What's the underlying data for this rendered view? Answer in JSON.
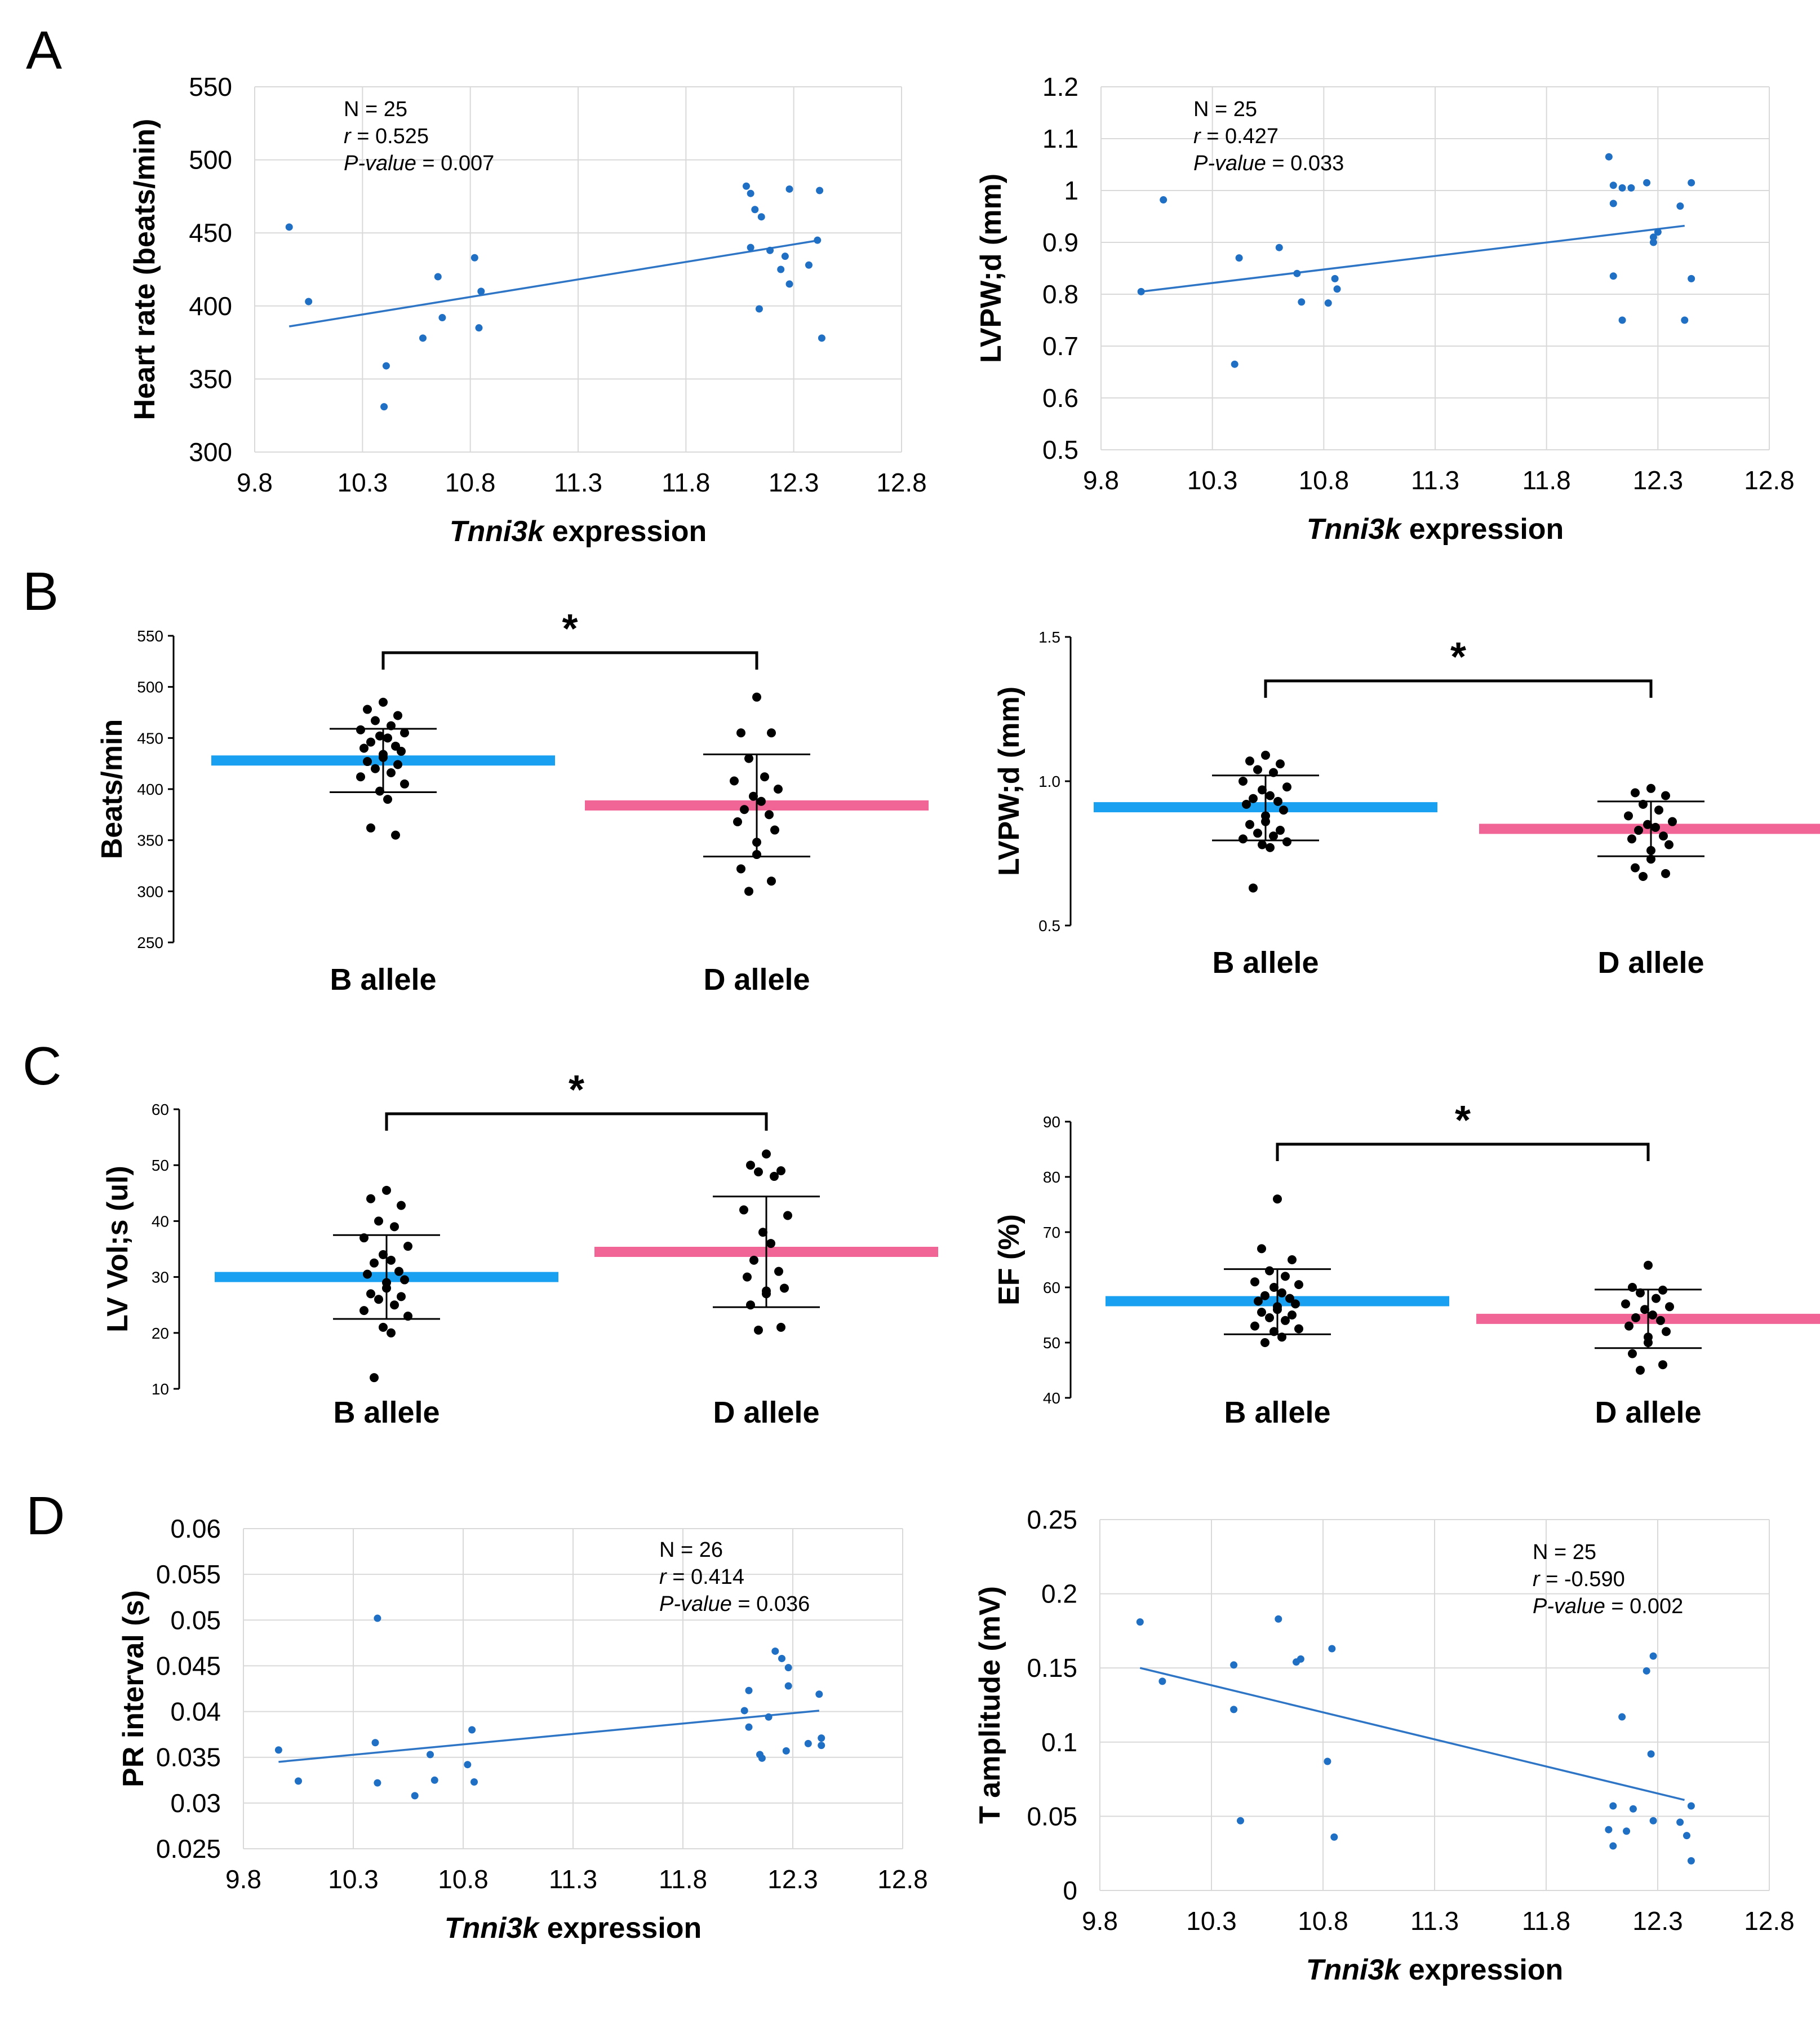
{
  "panel_labels": [
    "A",
    "B",
    "C",
    "D"
  ],
  "colors": {
    "scatter_point": "#1f6fc5",
    "trend_line": "#2e75c6",
    "grid": "#d9d9d9",
    "b_allele_mean": "#1aa0f0",
    "d_allele_mean": "#f06496",
    "dot": "#000000"
  },
  "chart_data": [
    {
      "id": "A-left",
      "panel": "A",
      "type": "scatter",
      "xlabel_italic": "Tnni3k",
      "xlabel_rest": " expression",
      "ylabel": "Heart rate (beats/min)",
      "xlim": [
        9.8,
        12.8
      ],
      "ylim": [
        300,
        550
      ],
      "xticks": [
        "9.8",
        "10.3",
        "10.8",
        "11.3",
        "11.8",
        "12.3",
        "12.8"
      ],
      "yticks": [
        "300",
        "350",
        "400",
        "450",
        "500",
        "550"
      ],
      "annotation": {
        "n": "N = 25",
        "r_label": "r",
        "r_value": " = 0.525",
        "p_label": "P-value",
        "p_value": " = 0.007"
      },
      "trendline": {
        "x": [
          9.96,
          12.42
        ],
        "y": [
          386,
          445
        ]
      },
      "points": [
        [
          9.96,
          454
        ],
        [
          10.05,
          403
        ],
        [
          10.41,
          359
        ],
        [
          10.4,
          331
        ],
        [
          10.58,
          378
        ],
        [
          10.65,
          420
        ],
        [
          10.67,
          392
        ],
        [
          10.82,
          433
        ],
        [
          10.84,
          385
        ],
        [
          10.85,
          410
        ],
        [
          12.08,
          482
        ],
        [
          12.1,
          477
        ],
        [
          12.12,
          466
        ],
        [
          12.15,
          461
        ],
        [
          12.1,
          440
        ],
        [
          12.19,
          438
        ],
        [
          12.14,
          398
        ],
        [
          12.26,
          434
        ],
        [
          12.24,
          425
        ],
        [
          12.28,
          480
        ],
        [
          12.28,
          415
        ],
        [
          12.37,
          428
        ],
        [
          12.41,
          445
        ],
        [
          12.42,
          479
        ],
        [
          12.43,
          378
        ]
      ]
    },
    {
      "id": "A-right",
      "panel": "A",
      "type": "scatter",
      "xlabel_italic": "Tnni3k",
      "xlabel_rest": " expression",
      "ylabel": "LVPW;d (mm)",
      "xlim": [
        9.8,
        12.8
      ],
      "ylim": [
        0.5,
        1.2
      ],
      "xticks": [
        "9.8",
        "10.3",
        "10.8",
        "11.3",
        "11.8",
        "12.3",
        "12.8"
      ],
      "yticks": [
        "0.5",
        "0.6",
        "0.7",
        "0.8",
        "0.9",
        "1",
        "1.1",
        "1.2"
      ],
      "annotation": {
        "n": "N = 25",
        "r_label": "r",
        "r_value": " = 0.427",
        "p_label": "P-value",
        "p_value": " = 0.033"
      },
      "trendline": {
        "x": [
          9.98,
          12.42
        ],
        "y": [
          0.805,
          0.932
        ]
      },
      "points": [
        [
          9.98,
          0.805
        ],
        [
          10.08,
          0.982
        ],
        [
          10.4,
          0.665
        ],
        [
          10.42,
          0.87
        ],
        [
          10.6,
          0.89
        ],
        [
          10.68,
          0.84
        ],
        [
          10.7,
          0.785
        ],
        [
          10.82,
          0.783
        ],
        [
          10.85,
          0.83
        ],
        [
          10.86,
          0.81
        ],
        [
          12.08,
          1.065
        ],
        [
          12.1,
          1.01
        ],
        [
          12.1,
          0.975
        ],
        [
          12.14,
          1.005
        ],
        [
          12.18,
          1.005
        ],
        [
          12.1,
          0.835
        ],
        [
          12.14,
          0.75
        ],
        [
          12.25,
          1.015
        ],
        [
          12.28,
          0.9
        ],
        [
          12.3,
          0.92
        ],
        [
          12.28,
          0.91
        ],
        [
          12.4,
          0.97
        ],
        [
          12.45,
          1.015
        ],
        [
          12.45,
          0.83
        ],
        [
          12.42,
          0.75
        ]
      ]
    },
    {
      "id": "B-left",
      "panel": "B",
      "type": "scatter",
      "ylabel": "Beats/min",
      "ylim": [
        250,
        550
      ],
      "yticks": [
        "250",
        "300",
        "350",
        "400",
        "450",
        "500",
        "550"
      ],
      "categories": [
        "B allele",
        "D allele"
      ],
      "series": [
        {
          "name": "B allele",
          "mean": 428,
          "sd_low": 397,
          "sd_high": 459,
          "values": [
            485,
            478,
            472,
            467,
            462,
            458,
            455,
            452,
            450,
            446,
            442,
            440,
            437,
            434,
            431,
            427,
            424,
            420,
            416,
            412,
            405,
            398,
            390,
            362,
            355
          ]
        },
        {
          "name": "D allele",
          "mean": 384,
          "sd_low": 334,
          "sd_high": 434,
          "values": [
            490,
            455,
            455,
            430,
            412,
            408,
            400,
            393,
            388,
            380,
            375,
            368,
            360,
            348,
            336,
            322,
            310,
            300
          ]
        }
      ],
      "significance": "*"
    },
    {
      "id": "B-right",
      "panel": "B",
      "type": "scatter",
      "ylabel": "LVPW;d (mm)",
      "ylim": [
        0.5,
        1.5
      ],
      "yticks": [
        "0.5",
        "1.0",
        "1.5"
      ],
      "categories": [
        "B allele",
        "D allele"
      ],
      "series": [
        {
          "name": "B allele",
          "mean": 0.91,
          "sd_low": 0.795,
          "sd_high": 1.02,
          "values": [
            1.09,
            1.07,
            1.06,
            1.04,
            1.03,
            1.0,
            0.98,
            0.97,
            0.95,
            0.94,
            0.93,
            0.92,
            0.9,
            0.88,
            0.86,
            0.85,
            0.83,
            0.82,
            0.81,
            0.8,
            0.79,
            0.78,
            0.77,
            0.63
          ]
        },
        {
          "name": "D allele",
          "mean": 0.835,
          "sd_low": 0.74,
          "sd_high": 0.93,
          "values": [
            0.975,
            0.96,
            0.95,
            0.92,
            0.9,
            0.88,
            0.86,
            0.85,
            0.84,
            0.83,
            0.81,
            0.8,
            0.78,
            0.76,
            0.73,
            0.7,
            0.68,
            0.67
          ]
        }
      ],
      "significance": "*"
    },
    {
      "id": "C-left",
      "panel": "C",
      "type": "scatter",
      "ylabel": "LV Vol;s (ul)",
      "ylim": [
        10,
        60
      ],
      "yticks": [
        "10",
        "20",
        "30",
        "40",
        "50",
        "60"
      ],
      "categories": [
        "B allele",
        "D allele"
      ],
      "series": [
        {
          "name": "B allele",
          "mean": 30,
          "sd_low": 22.5,
          "sd_high": 37.5,
          "values": [
            45.5,
            44,
            42.8,
            40,
            39,
            37,
            35.5,
            34,
            33,
            32.5,
            31,
            30.5,
            29.5,
            29,
            28,
            27,
            26.5,
            26,
            25,
            24,
            23,
            21,
            20,
            12
          ]
        },
        {
          "name": "D allele",
          "mean": 34.5,
          "sd_low": 24.6,
          "sd_high": 44.4,
          "values": [
            52,
            50,
            49,
            48.8,
            48,
            42,
            41,
            38,
            36,
            33,
            31,
            30,
            28,
            27.5,
            27,
            25,
            21,
            20.5
          ]
        }
      ],
      "significance": "*"
    },
    {
      "id": "C-right",
      "panel": "C",
      "type": "scatter",
      "ylabel": "EF (%)",
      "ylim": [
        40,
        90
      ],
      "yticks": [
        "40",
        "50",
        "60",
        "70",
        "80",
        "90"
      ],
      "categories": [
        "B allele",
        "D allele"
      ],
      "series": [
        {
          "name": "B allele",
          "mean": 57.5,
          "sd_low": 51.5,
          "sd_high": 63.3,
          "values": [
            76,
            67,
            65,
            63,
            62,
            61,
            60.5,
            60,
            59,
            58.5,
            58,
            57.5,
            57,
            56.5,
            56,
            55.5,
            55,
            54.5,
            54,
            53,
            52.5,
            52,
            51,
            50
          ]
        },
        {
          "name": "D allele",
          "mean": 54.3,
          "sd_low": 49,
          "sd_high": 59.6,
          "values": [
            64,
            60,
            59.5,
            59,
            58,
            57,
            56.5,
            56,
            55,
            54.5,
            54,
            53,
            52,
            51,
            50,
            48,
            46,
            45
          ]
        }
      ],
      "significance": "*"
    },
    {
      "id": "D-left",
      "panel": "D",
      "type": "scatter",
      "xlabel_italic": "Tnni3k",
      "xlabel_rest": " expression",
      "ylabel": "PR interval (s)",
      "xlim": [
        9.8,
        12.8
      ],
      "ylim": [
        0.025,
        0.06
      ],
      "xticks": [
        "9.8",
        "10.3",
        "10.8",
        "11.3",
        "11.8",
        "12.3",
        "12.8"
      ],
      "yticks": [
        "0.025",
        "0.03",
        "0.035",
        "0.04",
        "0.045",
        "0.05",
        "0.055",
        "0.06"
      ],
      "annotation": {
        "n": "N = 26",
        "r_label": "r",
        "r_value": " = 0.414",
        "p_label": "P-value",
        "p_value": " = 0.036"
      },
      "trendline": {
        "x": [
          9.96,
          12.42
        ],
        "y": [
          0.0345,
          0.0401
        ]
      },
      "points": [
        [
          9.96,
          0.0358
        ],
        [
          10.05,
          0.0324
        ],
        [
          10.41,
          0.0502
        ],
        [
          10.4,
          0.0366
        ],
        [
          10.41,
          0.0322
        ],
        [
          10.58,
          0.0308
        ],
        [
          10.65,
          0.0353
        ],
        [
          10.67,
          0.0325
        ],
        [
          10.82,
          0.0342
        ],
        [
          10.84,
          0.038
        ],
        [
          10.85,
          0.0323
        ],
        [
          12.08,
          0.0401
        ],
        [
          12.1,
          0.0423
        ],
        [
          12.1,
          0.0383
        ],
        [
          12.15,
          0.0353
        ],
        [
          12.16,
          0.0349
        ],
        [
          12.19,
          0.0394
        ],
        [
          12.22,
          0.0466
        ],
        [
          12.25,
          0.0458
        ],
        [
          12.28,
          0.0448
        ],
        [
          12.28,
          0.0428
        ],
        [
          12.27,
          0.0357
        ],
        [
          12.37,
          0.0365
        ],
        [
          12.42,
          0.0419
        ],
        [
          12.43,
          0.0371
        ],
        [
          12.43,
          0.0363
        ]
      ]
    },
    {
      "id": "D-right",
      "panel": "D",
      "type": "scatter",
      "xlabel_italic": "Tnni3k",
      "xlabel_rest": " expression",
      "ylabel": "T amplitude (mV)",
      "xlim": [
        9.8,
        12.8
      ],
      "ylim": [
        0,
        0.25
      ],
      "xticks": [
        "9.8",
        "10.3",
        "10.8",
        "11.3",
        "11.8",
        "12.3",
        "12.8"
      ],
      "yticks": [
        "0",
        "0.05",
        "0.1",
        "0.15",
        "0.2",
        "0.25"
      ],
      "annotation": {
        "n": "N = 25",
        "r_label": "r",
        "r_value": " = -0.590",
        "p_label": "P-value",
        "p_value": " = 0.002"
      },
      "trendline": {
        "x": [
          9.98,
          12.42
        ],
        "y": [
          0.15,
          0.061
        ]
      },
      "points": [
        [
          9.98,
          0.181
        ],
        [
          10.08,
          0.141
        ],
        [
          10.4,
          0.152
        ],
        [
          10.4,
          0.122
        ],
        [
          10.43,
          0.047
        ],
        [
          10.6,
          0.183
        ],
        [
          10.68,
          0.154
        ],
        [
          10.7,
          0.156
        ],
        [
          10.82,
          0.087
        ],
        [
          10.84,
          0.163
        ],
        [
          10.85,
          0.036
        ],
        [
          12.08,
          0.041
        ],
        [
          12.1,
          0.057
        ],
        [
          12.1,
          0.03
        ],
        [
          12.14,
          0.117
        ],
        [
          12.16,
          0.04
        ],
        [
          12.19,
          0.055
        ],
        [
          12.25,
          0.148
        ],
        [
          12.28,
          0.158
        ],
        [
          12.27,
          0.092
        ],
        [
          12.28,
          0.047
        ],
        [
          12.4,
          0.046
        ],
        [
          12.43,
          0.037
        ],
        [
          12.45,
          0.057
        ],
        [
          12.45,
          0.02
        ]
      ]
    }
  ]
}
